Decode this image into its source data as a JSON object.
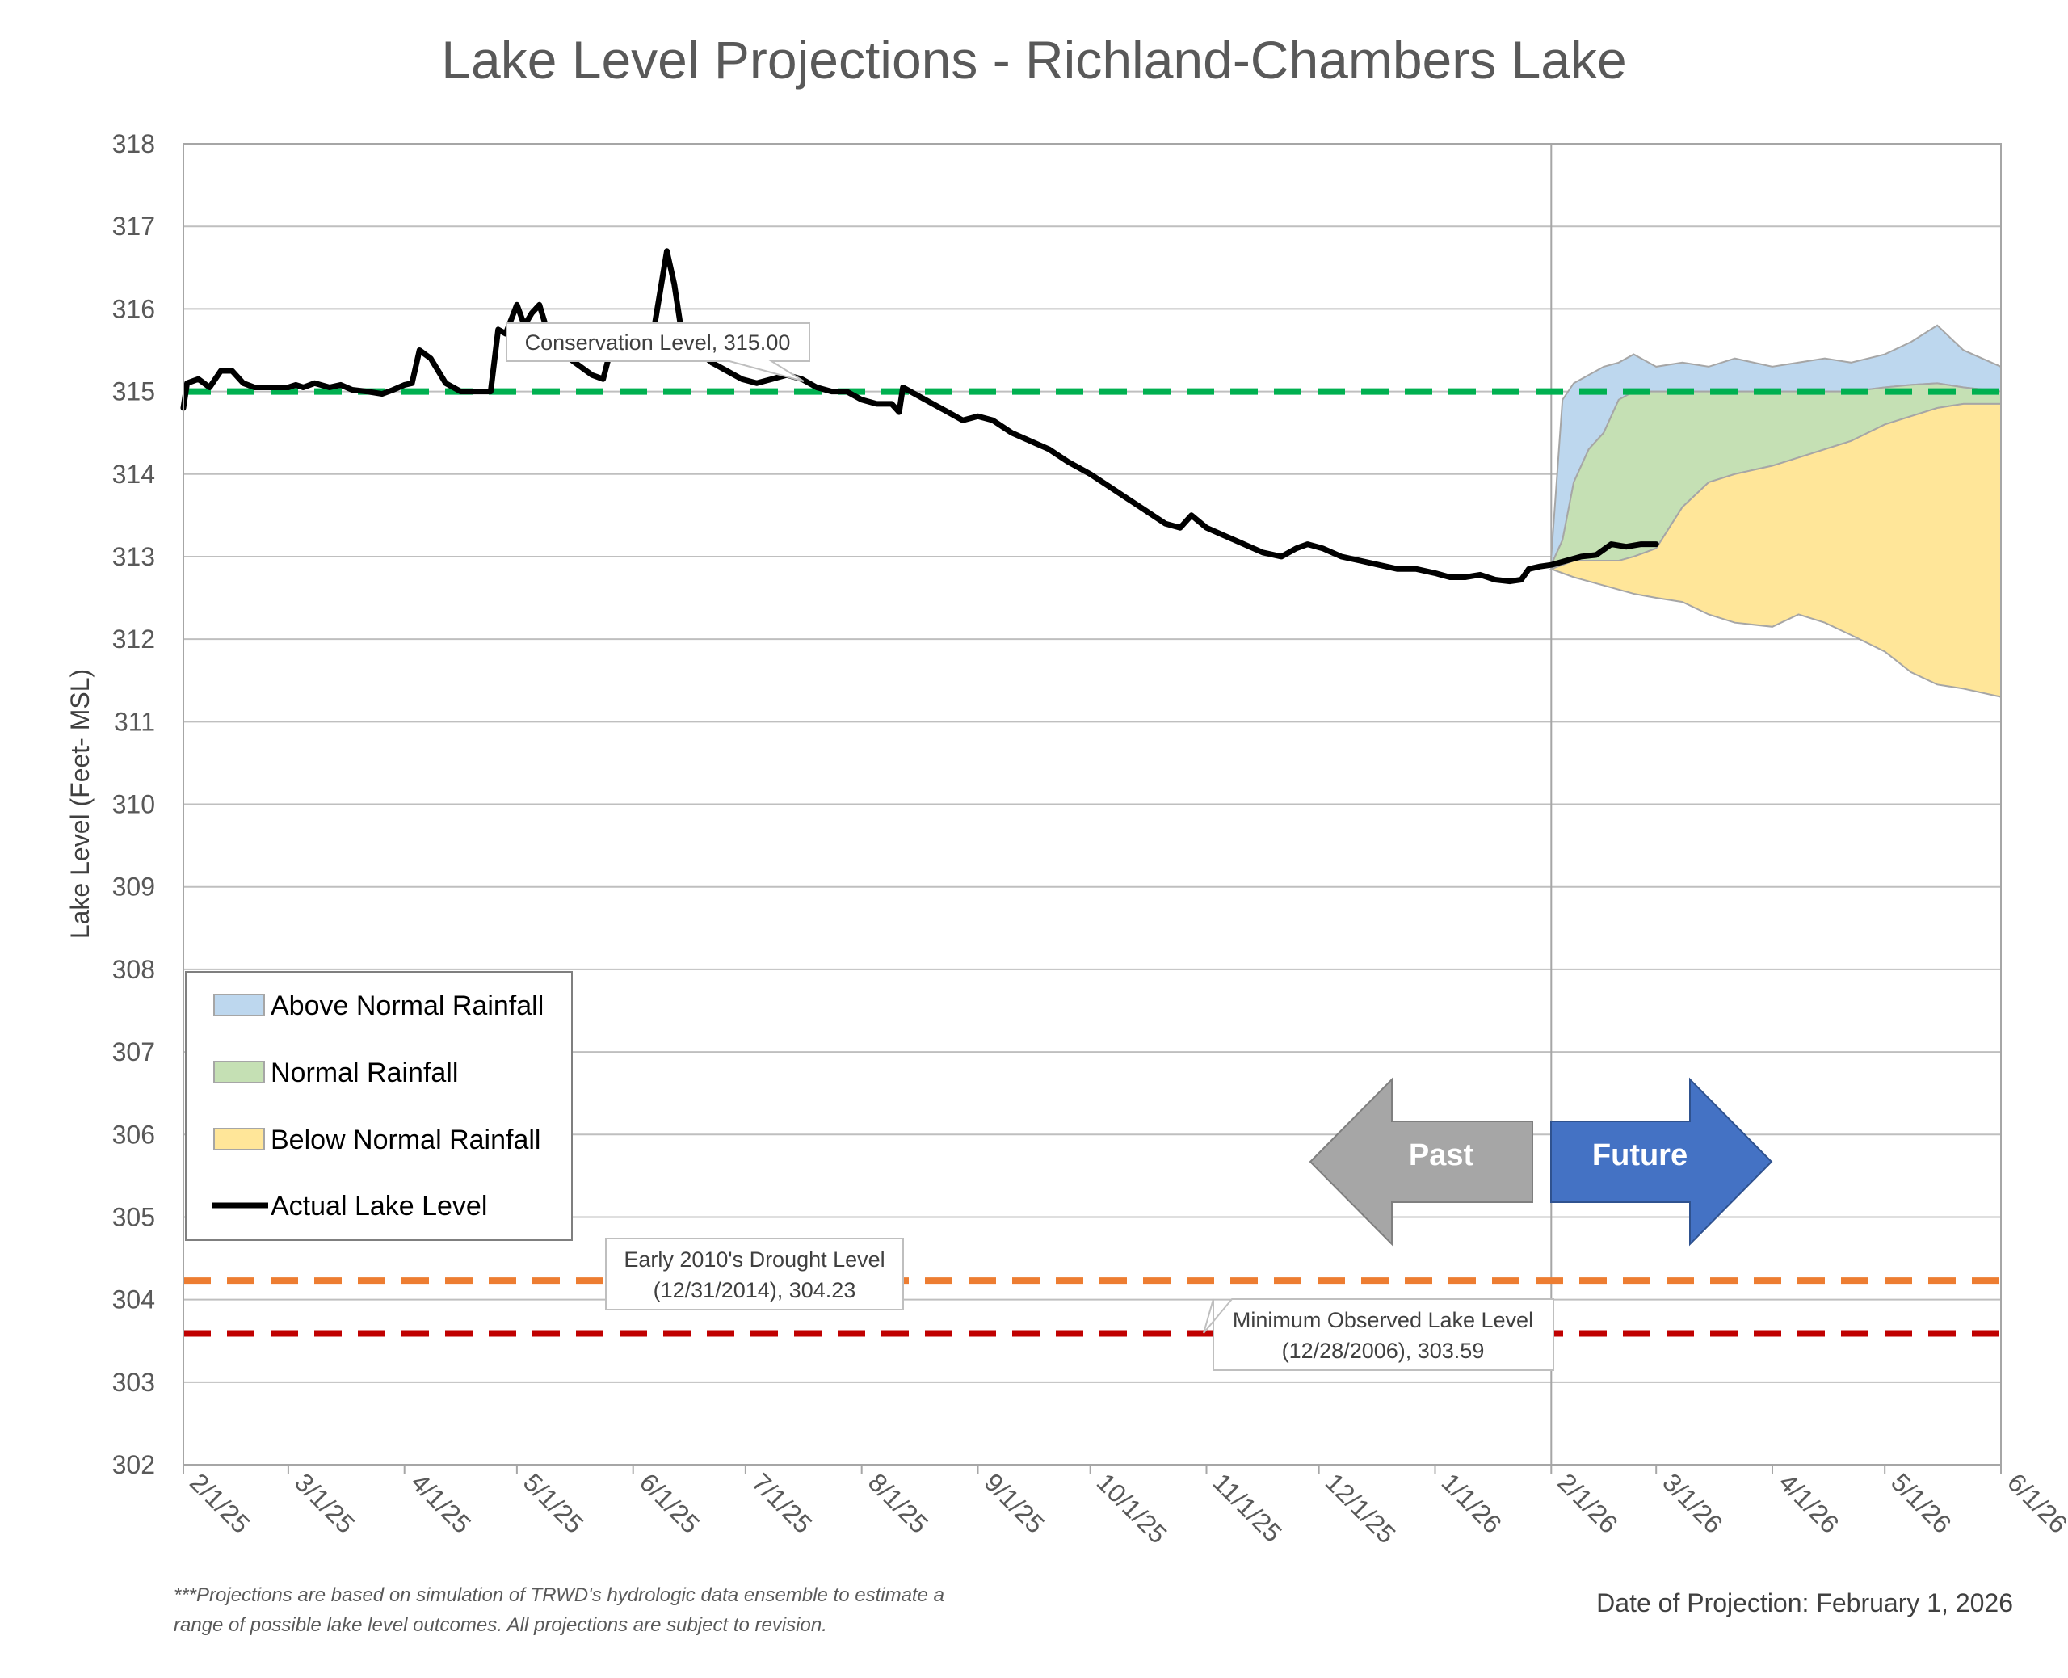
{
  "chart_data": {
    "type": "area",
    "title": "Lake Level Projections - Richland-Chambers Lake",
    "ylabel": "Lake Level (Feet- MSL)",
    "xlabel": "",
    "ylim": [
      302,
      318
    ],
    "yticks": [
      302,
      303,
      304,
      305,
      306,
      307,
      308,
      309,
      310,
      311,
      312,
      313,
      314,
      315,
      316,
      317,
      318
    ],
    "xlim": [
      "2025-02-01",
      "2026-06-01"
    ],
    "xticks": [
      {
        "date": "2025-02-01",
        "label": "2/1/25"
      },
      {
        "date": "2025-03-01",
        "label": "3/1/25"
      },
      {
        "date": "2025-04-01",
        "label": "4/1/25"
      },
      {
        "date": "2025-05-01",
        "label": "5/1/25"
      },
      {
        "date": "2025-06-01",
        "label": "6/1/25"
      },
      {
        "date": "2025-07-01",
        "label": "7/1/25"
      },
      {
        "date": "2025-08-01",
        "label": "8/1/25"
      },
      {
        "date": "2025-09-01",
        "label": "9/1/25"
      },
      {
        "date": "2025-10-01",
        "label": "10/1/25"
      },
      {
        "date": "2025-11-01",
        "label": "11/1/25"
      },
      {
        "date": "2025-12-01",
        "label": "12/1/25"
      },
      {
        "date": "2026-01-01",
        "label": "1/1/26"
      },
      {
        "date": "2026-02-01",
        "label": "2/1/26"
      },
      {
        "date": "2026-03-01",
        "label": "3/1/26"
      },
      {
        "date": "2026-04-01",
        "label": "4/1/26"
      },
      {
        "date": "2026-05-01",
        "label": "5/1/26"
      },
      {
        "date": "2026-06-01",
        "label": "6/1/26"
      }
    ],
    "grid": true,
    "legend_placement": "lower-left",
    "legend": [
      {
        "label": "Above Normal Rainfall",
        "kind": "area",
        "color": "#bdd7ee",
        "edge": "#a6a6a6"
      },
      {
        "label": "Normal Rainfall",
        "kind": "area",
        "color": "#c5e0b4",
        "edge": "#a6a6a6"
      },
      {
        "label": "Below Normal Rainfall",
        "kind": "area",
        "color": "#ffe699",
        "edge": "#a6a6a6"
      },
      {
        "label": "Actual Lake Level",
        "kind": "line",
        "color": "#000000"
      }
    ],
    "reference_lines": [
      {
        "value": 315.0,
        "color": "#00b050",
        "label": "Conservation Level, 315.00"
      },
      {
        "value": 304.23,
        "color": "#ed7d31",
        "label_line1": "Early 2010's Drought Level",
        "label_line2": "(12/31/2014), 304.23"
      },
      {
        "value": 303.59,
        "color": "#c00000",
        "label_line1": "Minimum Observed Lake Level",
        "label_line2": "(12/28/2006), 303.59"
      }
    ],
    "projection_date_line": "2026-02-01",
    "actual_level": {
      "name": "Actual Lake Level",
      "color": "#000000",
      "points": [
        [
          "2025-02-01",
          314.8
        ],
        [
          "2025-02-02",
          315.1
        ],
        [
          "2025-02-05",
          315.15
        ],
        [
          "2025-02-08",
          315.05
        ],
        [
          "2025-02-11",
          315.25
        ],
        [
          "2025-02-14",
          315.25
        ],
        [
          "2025-02-17",
          315.1
        ],
        [
          "2025-02-20",
          315.05
        ],
        [
          "2025-02-25",
          315.05
        ],
        [
          "2025-03-01",
          315.05
        ],
        [
          "2025-03-03",
          315.08
        ],
        [
          "2025-03-05",
          315.05
        ],
        [
          "2025-03-08",
          315.1
        ],
        [
          "2025-03-12",
          315.05
        ],
        [
          "2025-03-15",
          315.08
        ],
        [
          "2025-03-18",
          315.02
        ],
        [
          "2025-03-22",
          315.0
        ],
        [
          "2025-03-26",
          314.97
        ],
        [
          "2025-03-29",
          315.02
        ],
        [
          "2025-04-01",
          315.08
        ],
        [
          "2025-04-03",
          315.1
        ],
        [
          "2025-04-05",
          315.5
        ],
        [
          "2025-04-08",
          315.4
        ],
        [
          "2025-04-12",
          315.1
        ],
        [
          "2025-04-16",
          315.0
        ],
        [
          "2025-04-20",
          315.0
        ],
        [
          "2025-04-24",
          315.0
        ],
        [
          "2025-04-26",
          315.75
        ],
        [
          "2025-04-28",
          315.7
        ],
        [
          "2025-05-01",
          316.05
        ],
        [
          "2025-05-03",
          315.8
        ],
        [
          "2025-05-05",
          315.95
        ],
        [
          "2025-05-07",
          316.05
        ],
        [
          "2025-05-09",
          315.75
        ],
        [
          "2025-05-12",
          315.55
        ],
        [
          "2025-05-15",
          315.4
        ],
        [
          "2025-05-18",
          315.3
        ],
        [
          "2025-05-21",
          315.2
        ],
        [
          "2025-05-24",
          315.15
        ],
        [
          "2025-05-26",
          315.5
        ],
        [
          "2025-05-29",
          315.6
        ],
        [
          "2025-06-02",
          315.55
        ],
        [
          "2025-06-06",
          315.6
        ],
        [
          "2025-06-10",
          316.7
        ],
        [
          "2025-06-12",
          316.3
        ],
        [
          "2025-06-14",
          315.7
        ],
        [
          "2025-06-18",
          315.5
        ],
        [
          "2025-06-22",
          315.35
        ],
        [
          "2025-06-26",
          315.25
        ],
        [
          "2025-06-30",
          315.15
        ],
        [
          "2025-07-04",
          315.1
        ],
        [
          "2025-07-08",
          315.15
        ],
        [
          "2025-07-12",
          315.2
        ],
        [
          "2025-07-16",
          315.15
        ],
        [
          "2025-07-20",
          315.05
        ],
        [
          "2025-07-24",
          315.0
        ],
        [
          "2025-07-28",
          315.0
        ],
        [
          "2025-08-01",
          314.9
        ],
        [
          "2025-08-05",
          314.85
        ],
        [
          "2025-08-09",
          314.85
        ],
        [
          "2025-08-11",
          314.75
        ],
        [
          "2025-08-12",
          315.05
        ],
        [
          "2025-08-16",
          314.95
        ],
        [
          "2025-08-20",
          314.85
        ],
        [
          "2025-08-24",
          314.75
        ],
        [
          "2025-08-28",
          314.65
        ],
        [
          "2025-09-01",
          314.7
        ],
        [
          "2025-09-05",
          314.65
        ],
        [
          "2025-09-10",
          314.5
        ],
        [
          "2025-09-15",
          314.4
        ],
        [
          "2025-09-20",
          314.3
        ],
        [
          "2025-09-25",
          314.15
        ],
        [
          "2025-10-01",
          314.0
        ],
        [
          "2025-10-06",
          313.85
        ],
        [
          "2025-10-11",
          313.7
        ],
        [
          "2025-10-16",
          313.55
        ],
        [
          "2025-10-21",
          313.4
        ],
        [
          "2025-10-25",
          313.35
        ],
        [
          "2025-10-28",
          313.5
        ],
        [
          "2025-11-01",
          313.35
        ],
        [
          "2025-11-06",
          313.25
        ],
        [
          "2025-11-11",
          313.15
        ],
        [
          "2025-11-16",
          313.05
        ],
        [
          "2025-11-21",
          313.0
        ],
        [
          "2025-11-25",
          313.1
        ],
        [
          "2025-11-28",
          313.15
        ],
        [
          "2025-12-02",
          313.1
        ],
        [
          "2025-12-07",
          313.0
        ],
        [
          "2025-12-12",
          312.95
        ],
        [
          "2025-12-17",
          312.9
        ],
        [
          "2025-12-22",
          312.85
        ],
        [
          "2025-12-27",
          312.85
        ],
        [
          "2026-01-01",
          312.8
        ],
        [
          "2026-01-05",
          312.75
        ],
        [
          "2026-01-09",
          312.75
        ],
        [
          "2026-01-13",
          312.78
        ],
        [
          "2026-01-17",
          312.72
        ],
        [
          "2026-01-21",
          312.7
        ],
        [
          "2026-01-24",
          312.72
        ],
        [
          "2026-01-26",
          312.85
        ],
        [
          "2026-01-29",
          312.88
        ],
        [
          "2026-02-01",
          312.9
        ],
        [
          "2026-02-05",
          312.95
        ],
        [
          "2026-02-09",
          313.0
        ],
        [
          "2026-02-13",
          313.02
        ],
        [
          "2026-02-17",
          313.15
        ],
        [
          "2026-02-21",
          313.12
        ],
        [
          "2026-02-25",
          313.15
        ],
        [
          "2026-03-01",
          313.15
        ]
      ]
    },
    "projection_bands": {
      "dates": [
        "2026-02-01",
        "2026-02-04",
        "2026-02-07",
        "2026-02-11",
        "2026-02-15",
        "2026-02-19",
        "2026-02-23",
        "2026-03-01",
        "2026-03-08",
        "2026-03-15",
        "2026-03-22",
        "2026-04-01",
        "2026-04-08",
        "2026-04-15",
        "2026-04-22",
        "2026-05-01",
        "2026-05-08",
        "2026-05-15",
        "2026-05-22",
        "2026-06-01"
      ],
      "above_normal_upper": [
        313.0,
        314.9,
        315.1,
        315.2,
        315.3,
        315.35,
        315.45,
        315.3,
        315.35,
        315.3,
        315.4,
        315.3,
        315.35,
        315.4,
        315.35,
        315.45,
        315.6,
        315.8,
        315.5,
        315.3
      ],
      "normal_upper": [
        312.9,
        313.2,
        313.9,
        314.3,
        314.5,
        314.9,
        315.0,
        315.0,
        315.0,
        315.0,
        315.0,
        315.0,
        315.0,
        315.0,
        315.0,
        315.05,
        315.08,
        315.1,
        315.05,
        315.0
      ],
      "below_normal_upper": [
        312.85,
        312.9,
        312.95,
        312.95,
        312.95,
        312.95,
        313.0,
        313.1,
        313.6,
        313.9,
        314.0,
        314.1,
        314.2,
        314.3,
        314.4,
        314.6,
        314.7,
        314.8,
        314.85,
        314.85
      ],
      "below_normal_lower": [
        312.85,
        312.8,
        312.75,
        312.7,
        312.65,
        312.6,
        312.55,
        312.5,
        312.45,
        312.3,
        312.2,
        312.15,
        312.3,
        312.2,
        312.05,
        311.85,
        311.6,
        311.45,
        311.4,
        311.3
      ]
    },
    "arrows": {
      "past_label": "Past",
      "future_label": "Future",
      "past_color": "#a6a6a6",
      "future_color": "#4472c4"
    }
  },
  "footnote": {
    "line1": "***Projections are based on simulation of TRWD's hydrologic data ensemble to estimate a",
    "line2": "range of possible lake level outcomes.  All projections are subject to revision."
  },
  "projection_date_text": "Date of Projection: February 1, 2026"
}
